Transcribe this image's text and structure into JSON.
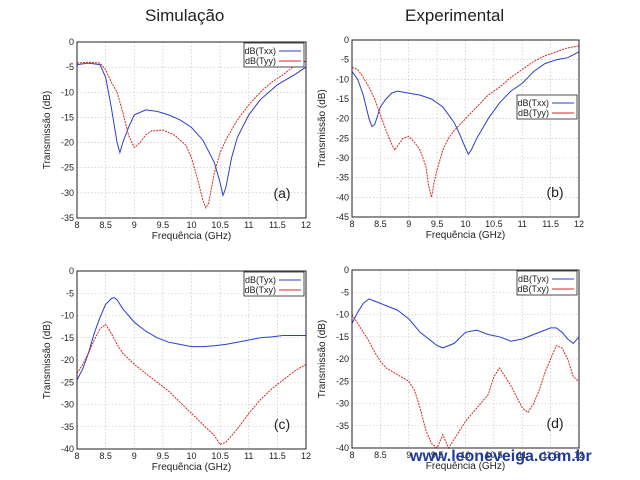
{
  "titles": {
    "left": "Simulação",
    "right": "Experimental"
  },
  "watermark": "www.leoneveiga.com.br",
  "colors": {
    "blue": "#2b3fcf",
    "red": "#d8261f"
  },
  "chart_data": [
    {
      "type": "line",
      "panel": "(a)",
      "xlabel": "Frequência (GHz)",
      "ylabel": "Transmissão (dB)",
      "xlim": [
        8,
        12
      ],
      "ylim": [
        -35,
        0
      ],
      "xticks": [
        "8",
        "8.5",
        "9",
        "9.5",
        "10",
        "10.5",
        "11",
        "11.5",
        "12"
      ],
      "yticks": [
        "0",
        "-5",
        "-10",
        "-15",
        "-20",
        "-25",
        "-30",
        "-35"
      ],
      "legend": "top-right",
      "series": [
        {
          "name": "dB(Txx)",
          "color": "blue",
          "x": [
            8,
            8.2,
            8.4,
            8.5,
            8.6,
            8.7,
            8.75,
            8.8,
            8.9,
            9.0,
            9.2,
            9.4,
            9.6,
            9.8,
            10.0,
            10.2,
            10.4,
            10.5,
            10.55,
            10.6,
            10.7,
            10.8,
            11.0,
            11.2,
            11.5,
            11.8,
            12
          ],
          "y": [
            -4.5,
            -4.2,
            -4.5,
            -7,
            -13,
            -20,
            -22,
            -20,
            -17,
            -14.5,
            -13.5,
            -13.8,
            -14.5,
            -15.5,
            -17,
            -19.5,
            -24,
            -28,
            -30.5,
            -29,
            -23,
            -19,
            -14.5,
            -11.5,
            -8.5,
            -6.5,
            -5
          ]
        },
        {
          "name": "dB(Tyy)",
          "color": "red",
          "x": [
            8,
            8.2,
            8.4,
            8.5,
            8.6,
            8.7,
            8.8,
            8.9,
            9.0,
            9.1,
            9.2,
            9.3,
            9.5,
            9.7,
            9.9,
            10.0,
            10.1,
            10.2,
            10.25,
            10.3,
            10.4,
            10.5,
            10.6,
            10.8,
            11.0,
            11.2,
            11.4,
            11.6,
            11.8,
            12
          ],
          "y": [
            -4.2,
            -4.0,
            -4.2,
            -5.5,
            -8,
            -10,
            -14,
            -18.5,
            -21,
            -20,
            -18.5,
            -17.7,
            -17.5,
            -18.5,
            -20.5,
            -23,
            -27,
            -31.5,
            -33,
            -32,
            -26,
            -22,
            -19.5,
            -15.5,
            -12.5,
            -10,
            -8,
            -6.5,
            -4.7,
            -3.8
          ]
        }
      ]
    },
    {
      "type": "line",
      "panel": "(b)",
      "xlabel": "Frequência (GHz)",
      "ylabel": "Transmissão (dB)",
      "xlim": [
        8,
        12
      ],
      "ylim": [
        -45,
        0
      ],
      "xticks": [
        "8",
        "8.5",
        "9",
        "9.5",
        "10",
        "10.5",
        "11",
        "11.5",
        "12"
      ],
      "yticks": [
        "0",
        "-5",
        "-10",
        "-15",
        "-20",
        "-25",
        "-30",
        "-35",
        "-40",
        "-45"
      ],
      "legend": "center-right",
      "series": [
        {
          "name": "dB(Txx)",
          "color": "blue",
          "x": [
            8,
            8.1,
            8.2,
            8.3,
            8.35,
            8.4,
            8.5,
            8.6,
            8.7,
            8.8,
            9.0,
            9.2,
            9.4,
            9.6,
            9.8,
            9.9,
            10.0,
            10.05,
            10.1,
            10.2,
            10.4,
            10.6,
            10.8,
            11.0,
            11.2,
            11.4,
            11.6,
            11.8,
            12
          ],
          "y": [
            -8,
            -10,
            -14,
            -20,
            -22,
            -21.5,
            -17,
            -15,
            -13.5,
            -13,
            -13.5,
            -14,
            -15,
            -17,
            -21,
            -24,
            -27.5,
            -29,
            -28,
            -25,
            -20,
            -16,
            -13,
            -11,
            -8,
            -6,
            -5,
            -4.5,
            -3
          ]
        },
        {
          "name": "dB(Tyy)",
          "color": "red",
          "x": [
            8,
            8.1,
            8.2,
            8.3,
            8.4,
            8.5,
            8.6,
            8.7,
            8.75,
            8.8,
            8.9,
            9.0,
            9.1,
            9.2,
            9.3,
            9.35,
            9.4,
            9.45,
            9.5,
            9.6,
            9.7,
            9.8,
            10.0,
            10.2,
            10.4,
            10.6,
            10.8,
            11.0,
            11.2,
            11.4,
            11.6,
            11.8,
            12
          ],
          "y": [
            -7,
            -7.5,
            -9.5,
            -12,
            -15,
            -19,
            -23,
            -26.5,
            -28,
            -27,
            -25,
            -24.5,
            -26,
            -28,
            -32,
            -37,
            -40,
            -36,
            -33,
            -28,
            -25,
            -23,
            -20,
            -17,
            -14,
            -12,
            -9.5,
            -7.5,
            -5.5,
            -4,
            -3,
            -2,
            -1.5
          ]
        }
      ]
    },
    {
      "type": "line",
      "panel": "(c)",
      "xlabel": "Frequência (GHz)",
      "ylabel": "Transmissão (dB)",
      "xlim": [
        8,
        12
      ],
      "ylim": [
        -40,
        0
      ],
      "xticks": [
        "8",
        "8.5",
        "9",
        "9.5",
        "10",
        "10.5",
        "11",
        "11.5",
        "12"
      ],
      "yticks": [
        "0",
        "-5",
        "-10",
        "-15",
        "-20",
        "-25",
        "-30",
        "-35",
        "-40"
      ],
      "legend": "top-right",
      "series": [
        {
          "name": "dB(Tyx)",
          "color": "blue",
          "x": [
            8,
            8.1,
            8.2,
            8.3,
            8.4,
            8.5,
            8.6,
            8.65,
            8.7,
            8.8,
            9.0,
            9.2,
            9.4,
            9.6,
            9.8,
            10.0,
            10.2,
            10.4,
            10.6,
            10.8,
            11.0,
            11.2,
            11.4,
            11.6,
            11.8,
            12
          ],
          "y": [
            -24.5,
            -22,
            -18.5,
            -14,
            -10.5,
            -7.5,
            -6.2,
            -6,
            -6.5,
            -8.5,
            -11.5,
            -13.5,
            -15,
            -16,
            -16.5,
            -17,
            -17,
            -16.8,
            -16.5,
            -16,
            -15.5,
            -15,
            -14.8,
            -14.5,
            -14.5,
            -14.5
          ]
        },
        {
          "name": "dB(Txy)",
          "color": "red",
          "x": [
            8,
            8.1,
            8.2,
            8.3,
            8.4,
            8.5,
            8.6,
            8.7,
            8.8,
            9.0,
            9.2,
            9.4,
            9.6,
            9.8,
            10.0,
            10.2,
            10.4,
            10.5,
            10.6,
            10.8,
            11.0,
            11.2,
            11.4,
            11.6,
            11.8,
            12
          ],
          "y": [
            -23,
            -21,
            -18.5,
            -15.5,
            -13,
            -12,
            -14,
            -16.5,
            -18.5,
            -21,
            -23,
            -25,
            -27,
            -29.5,
            -32,
            -34.5,
            -37,
            -39,
            -38.5,
            -35.5,
            -32,
            -29,
            -26.5,
            -24.5,
            -22.5,
            -21
          ]
        }
      ]
    },
    {
      "type": "line",
      "panel": "(d)",
      "xlabel": "Frequência (GHz)",
      "ylabel": "Transmissão (dB)",
      "xlim": [
        8,
        12
      ],
      "ylim": [
        -40,
        0
      ],
      "xticks": [
        "8",
        "8.5",
        "9",
        "9.5",
        "10",
        "10.5",
        "11",
        "11.5",
        "12"
      ],
      "yticks": [
        "0",
        "-5",
        "-10",
        "-15",
        "-20",
        "-25",
        "-30",
        "-35",
        "-40"
      ],
      "legend": "top-right",
      "series": [
        {
          "name": "dB(Tyx)",
          "color": "blue",
          "x": [
            8,
            8.1,
            8.2,
            8.3,
            8.4,
            8.5,
            8.6,
            8.8,
            9.0,
            9.2,
            9.4,
            9.5,
            9.6,
            9.8,
            10.0,
            10.2,
            10.4,
            10.6,
            10.8,
            11.0,
            11.2,
            11.4,
            11.5,
            11.6,
            11.7,
            11.8,
            11.9,
            12
          ],
          "y": [
            -12,
            -9.5,
            -7.5,
            -6.5,
            -7,
            -7.5,
            -8,
            -9,
            -11,
            -14,
            -16,
            -17,
            -17.5,
            -16.5,
            -14,
            -13.5,
            -14.5,
            -15,
            -16,
            -15.5,
            -14.5,
            -13.5,
            -13,
            -13,
            -14,
            -15.5,
            -16.5,
            -15
          ]
        },
        {
          "name": "dB(Txy)",
          "color": "red",
          "x": [
            8,
            8.1,
            8.2,
            8.3,
            8.4,
            8.5,
            8.6,
            8.8,
            9.0,
            9.1,
            9.2,
            9.3,
            9.4,
            9.5,
            9.6,
            9.7,
            9.8,
            10.0,
            10.2,
            10.4,
            10.5,
            10.6,
            10.8,
            11.0,
            11.1,
            11.2,
            11.3,
            11.4,
            11.5,
            11.6,
            11.7,
            11.8,
            11.9,
            12
          ],
          "y": [
            -10,
            -12,
            -14,
            -16,
            -18.5,
            -20.5,
            -22,
            -23.5,
            -25,
            -27,
            -31,
            -36,
            -39,
            -40,
            -37,
            -40,
            -38,
            -34,
            -31,
            -28,
            -24,
            -22,
            -26,
            -31,
            -32,
            -30,
            -27,
            -23,
            -20,
            -17,
            -17.5,
            -20,
            -24,
            -25
          ]
        }
      ]
    }
  ]
}
